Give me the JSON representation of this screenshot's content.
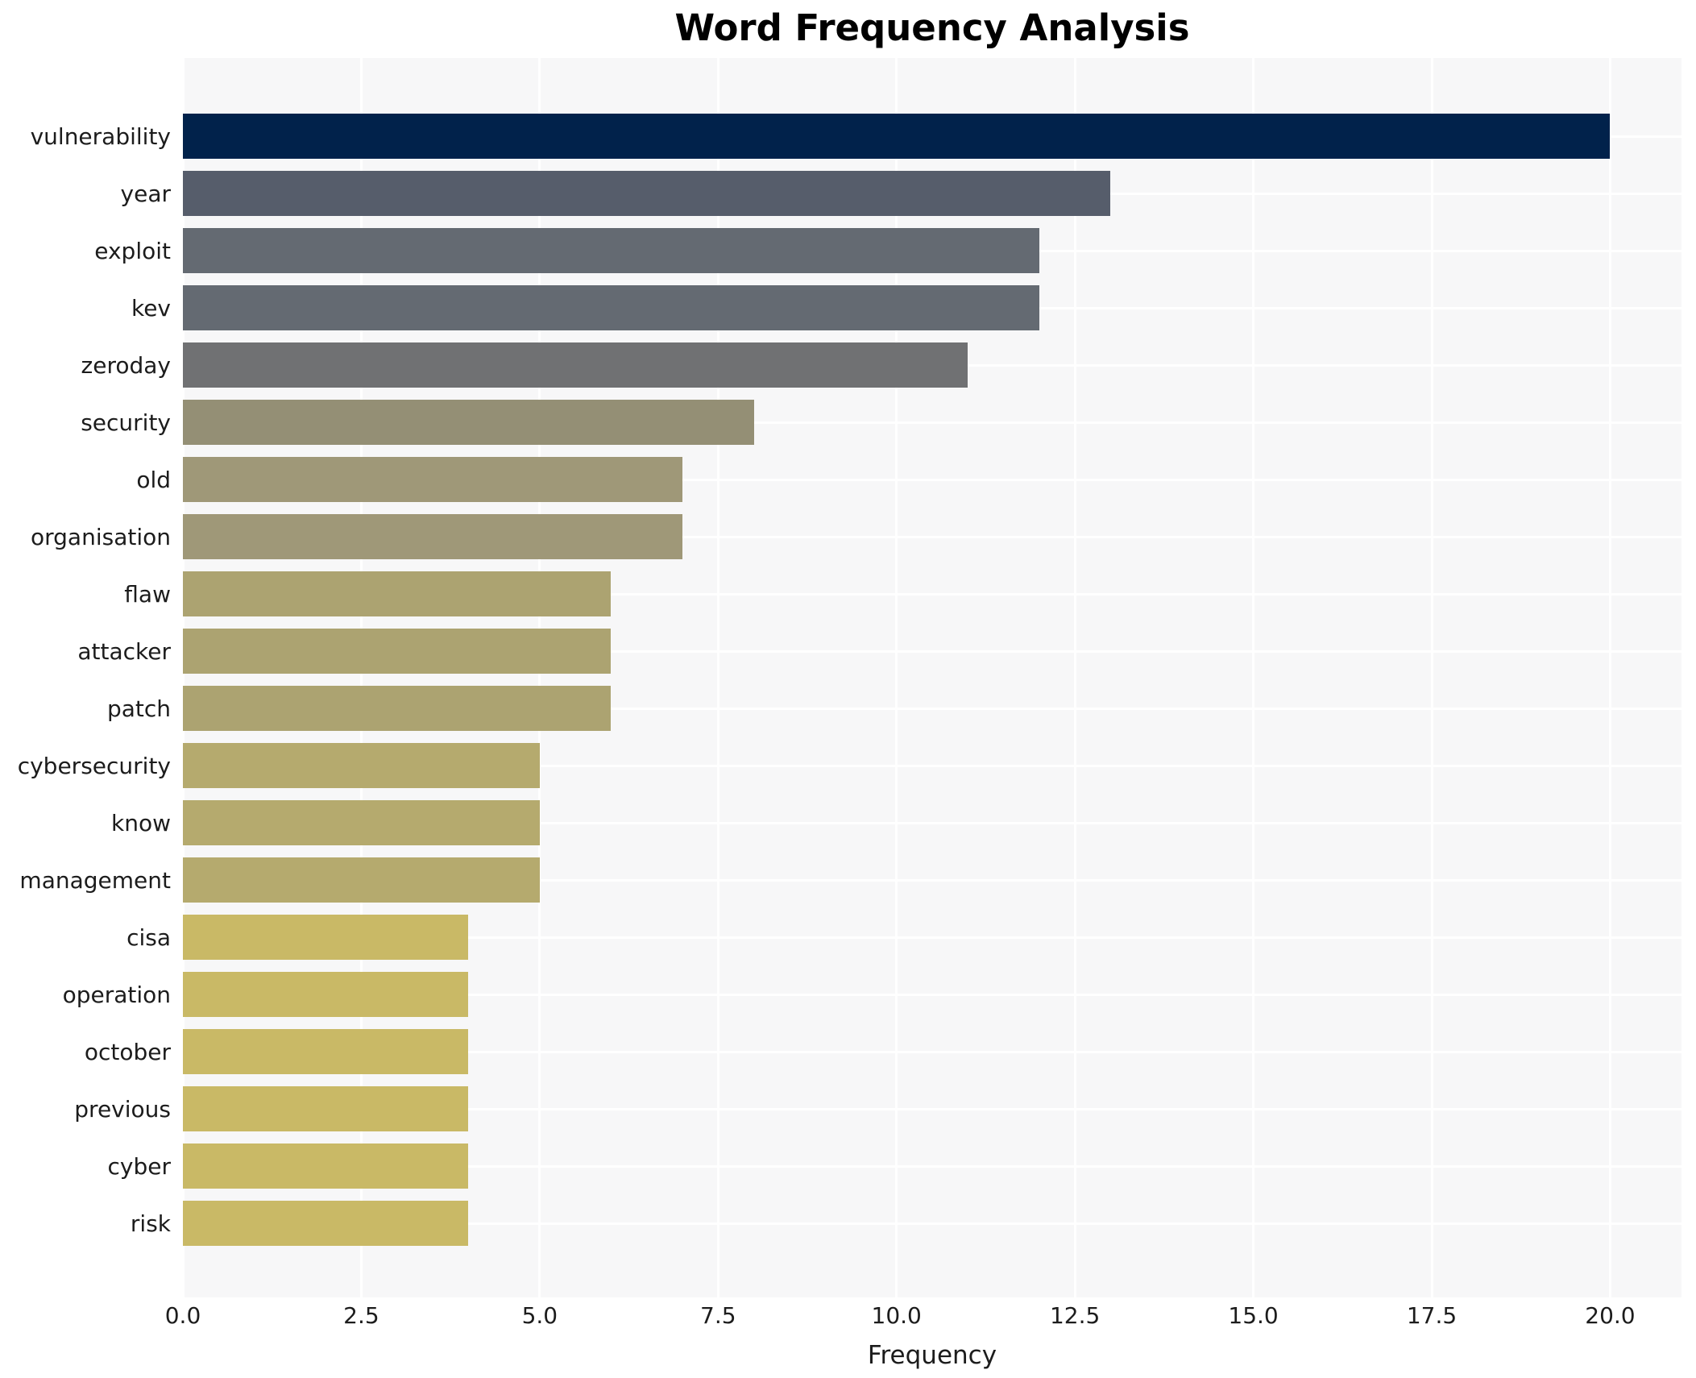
{
  "title": "Word Frequency Analysis",
  "chart_data": {
    "type": "bar",
    "orientation": "horizontal",
    "title": "Word Frequency Analysis",
    "xlabel": "Frequency",
    "ylabel": "",
    "xlim": [
      0,
      21
    ],
    "xticks": [
      0,
      2.5,
      5,
      7.5,
      10,
      12.5,
      15,
      17.5,
      20
    ],
    "xtick_labels": [
      "0.0",
      "2.5",
      "5.0",
      "7.5",
      "10.0",
      "12.5",
      "15.0",
      "17.5",
      "20.0"
    ],
    "grid": "on",
    "legend": "none",
    "panel_bg_color": "#f7f7f8",
    "gridline_color": "#ffffff",
    "text_color": "#1c1c1c",
    "categories": [
      "vulnerability",
      "year",
      "exploit",
      "kev",
      "zeroday",
      "security",
      "old",
      "organisation",
      "flaw",
      "attacker",
      "patch",
      "cybersecurity",
      "know",
      "management",
      "cisa",
      "operation",
      "october",
      "previous",
      "cyber",
      "risk"
    ],
    "values": [
      20,
      13,
      12,
      12,
      11,
      8,
      7,
      7,
      6,
      6,
      6,
      5,
      5,
      5,
      4,
      4,
      4,
      4,
      4,
      4
    ],
    "bar_colors": [
      "#01224b",
      "#565d6b",
      "#646a72",
      "#646a72",
      "#707173",
      "#948f75",
      "#9f9878",
      "#9f9878",
      "#aca371",
      "#aca371",
      "#aca371",
      "#b5aa6e",
      "#b5aa6e",
      "#b5aa6e",
      "#c9b966",
      "#c9b966",
      "#c9b966",
      "#c9b966",
      "#c9b966",
      "#c9b966"
    ]
  }
}
